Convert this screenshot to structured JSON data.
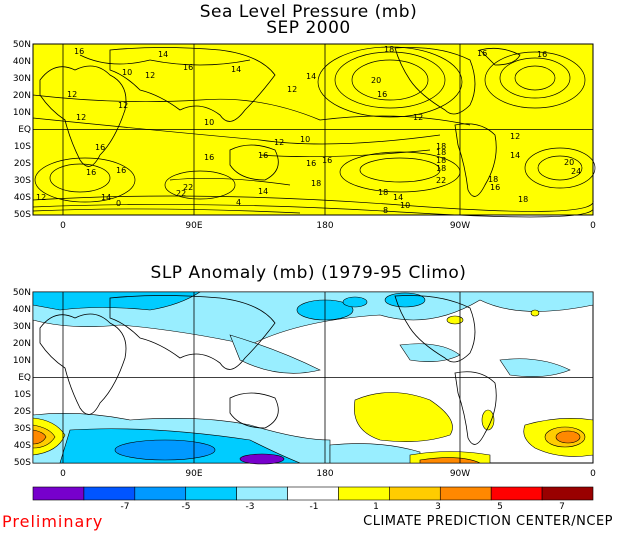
{
  "titles": {
    "top_line1": "Sea Level Pressure (mb)",
    "top_line2": "SEP 2000",
    "bottom": "SLP Anomaly (mb) (1979-95 Climo)"
  },
  "lat_labels": [
    "50N",
    "40N",
    "30N",
    "20N",
    "10N",
    "EQ",
    "10S",
    "20S",
    "30S",
    "40S",
    "50S"
  ],
  "lon_labels": [
    "0",
    "90E",
    "180",
    "90W",
    "0"
  ],
  "top_contour_labels": [
    "16",
    "14",
    "16",
    "18",
    "16",
    "16",
    "10",
    "12",
    "14",
    "20",
    "16",
    "12",
    "12",
    "12",
    "14",
    "12",
    "12",
    "10",
    "12",
    "18",
    "10",
    "18",
    "18",
    "16",
    "16",
    "16",
    "14",
    "16",
    "16",
    "22",
    "20",
    "24",
    "18",
    "18",
    "14",
    "14",
    "22",
    "4",
    "0",
    "12",
    "18",
    "14",
    "16",
    "8",
    "10",
    "18",
    "22",
    "12",
    "16",
    "16",
    "18"
  ],
  "legend": {
    "colors": [
      "#7700cc",
      "#0055ff",
      "#0099ff",
      "#00ccff",
      "#99eeff",
      "#ffffff",
      "#ffff00",
      "#ffcc00",
      "#ff8800",
      "#ff0000",
      "#990000"
    ],
    "tick_labels": [
      "-7",
      "-5",
      "-3",
      "-1",
      "1",
      "3",
      "5",
      "7"
    ]
  },
  "colors": {
    "slp_fill": "#ffff00",
    "preliminary": "#ff0000"
  },
  "footer": {
    "preliminary": "Preliminary",
    "credit": "CLIMATE PREDICTION CENTER/NCEP"
  }
}
